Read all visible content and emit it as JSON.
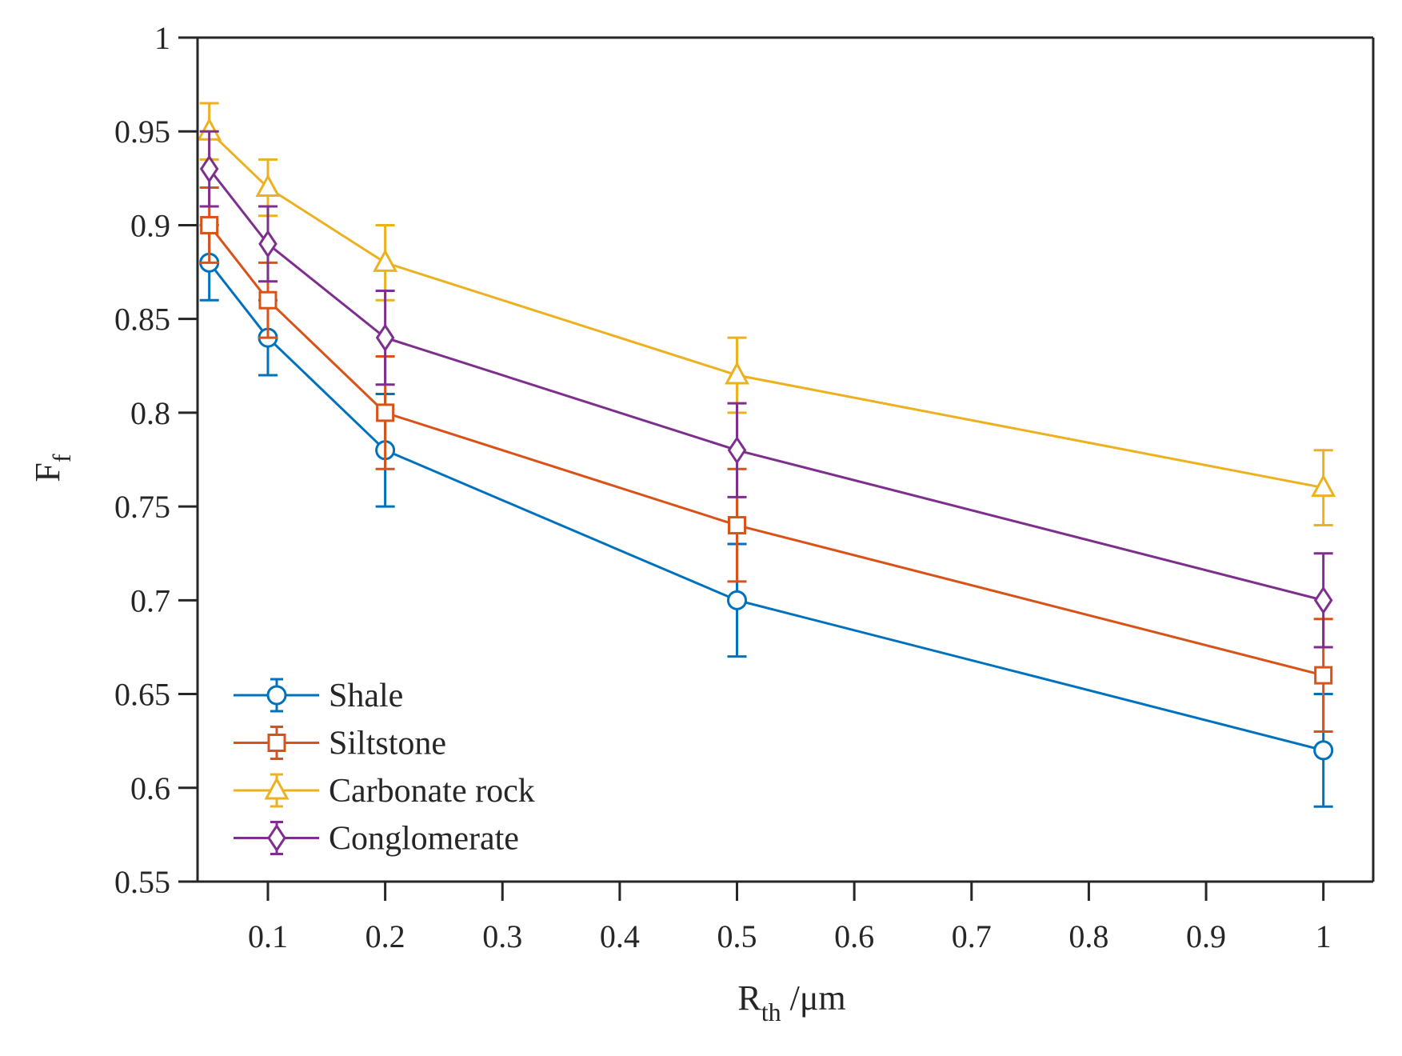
{
  "chart_data": {
    "type": "line",
    "title": "",
    "xlabel": "R",
    "xlabel_sub": "th",
    "xlabel_unit": " /μm",
    "ylabel": "F",
    "ylabel_sub": "f",
    "xlim": [
      0.04,
      1.0425
    ],
    "ylim": [
      0.55,
      1.0
    ],
    "xticks": [
      0.1,
      0.2,
      0.3,
      0.4,
      0.5,
      0.6,
      0.7,
      0.8,
      0.9,
      1
    ],
    "xtick_labels": [
      "0.1",
      "0.2",
      "0.3",
      "0.4",
      "0.5",
      "0.6",
      "0.7",
      "0.8",
      "0.9",
      "1"
    ],
    "yticks": [
      0.55,
      0.6,
      0.65,
      0.7,
      0.75,
      0.8,
      0.85,
      0.9,
      0.95,
      1
    ],
    "ytick_labels": [
      "0.55",
      "0.6",
      "0.65",
      "0.7",
      "0.75",
      "0.8",
      "0.85",
      "0.9",
      "0.95",
      "1"
    ],
    "grid": false,
    "legend_position": "bottom-left",
    "x": [
      0.05,
      0.1,
      0.2,
      0.5,
      1.0
    ],
    "series": [
      {
        "name": "Shale",
        "color": "#0072BD",
        "marker": "circle",
        "values": [
          0.88,
          0.84,
          0.78,
          0.7,
          0.62
        ],
        "errors": [
          0.02,
          0.02,
          0.03,
          0.03,
          0.03
        ]
      },
      {
        "name": "Siltstone",
        "color": "#D95319",
        "marker": "square",
        "values": [
          0.9,
          0.86,
          0.8,
          0.74,
          0.66
        ],
        "errors": [
          0.02,
          0.02,
          0.03,
          0.03,
          0.03
        ]
      },
      {
        "name": "Carbonate rock",
        "color": "#EDB120",
        "marker": "triangle",
        "values": [
          0.95,
          0.92,
          0.88,
          0.82,
          0.76
        ],
        "errors": [
          0.015,
          0.015,
          0.02,
          0.02,
          0.02
        ]
      },
      {
        "name": "Conglomerate",
        "color": "#7E2F8E",
        "marker": "diamond",
        "values": [
          0.93,
          0.89,
          0.84,
          0.78,
          0.7
        ],
        "errors": [
          0.02,
          0.02,
          0.025,
          0.025,
          0.025
        ]
      }
    ]
  }
}
